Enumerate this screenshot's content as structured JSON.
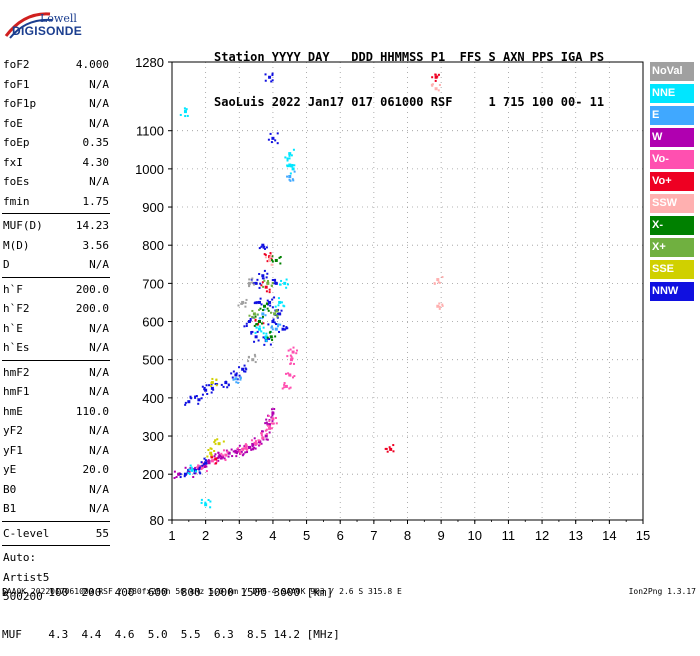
{
  "logo": {
    "line1": "Lowell",
    "line2": "DIGISONDE"
  },
  "header": {
    "line1": "Station YYYY DAY   DDD HHMMSS P1  FFS S AXN PPS IGA PS",
    "line2": "SaoLuis 2022 Jan17 017 061000 RSF     1 715 100 00- 11"
  },
  "params": [
    {
      "label": "foF2",
      "value": "4.000"
    },
    {
      "label": "foF1",
      "value": "N/A"
    },
    {
      "label": "foF1p",
      "value": "N/A"
    },
    {
      "label": "foE",
      "value": "N/A"
    },
    {
      "label": "foEp",
      "value": "0.35"
    },
    {
      "label": "fxI",
      "value": "4.30"
    },
    {
      "label": "foEs",
      "value": "N/A"
    },
    {
      "label": "fmin",
      "value": "1.75"
    },
    {
      "label": "MUF(D)",
      "value": "14.23"
    },
    {
      "label": "M(D)",
      "value": "3.56"
    },
    {
      "label": "D",
      "value": "N/A"
    },
    {
      "label": "h`F",
      "value": "200.0"
    },
    {
      "label": "h`F2",
      "value": "200.0"
    },
    {
      "label": "h`E",
      "value": "N/A"
    },
    {
      "label": "h`Es",
      "value": "N/A"
    },
    {
      "label": "hmF2",
      "value": "N/A"
    },
    {
      "label": "hmF1",
      "value": "N/A"
    },
    {
      "label": "hmE",
      "value": "110.0"
    },
    {
      "label": "yF2",
      "value": "N/A"
    },
    {
      "label": "yF1",
      "value": "N/A"
    },
    {
      "label": "yE",
      "value": "20.0"
    },
    {
      "label": "B0",
      "value": "N/A"
    },
    {
      "label": "B1",
      "value": "N/A"
    },
    {
      "label": "C-level",
      "value": "55"
    },
    {
      "label": "Auto:",
      "value": ""
    },
    {
      "label": "Artist5",
      "value": ""
    },
    {
      "label": "500200",
      "value": ""
    }
  ],
  "legend": [
    {
      "label": "NoVal",
      "color": "#a0a0a0"
    },
    {
      "label": "NNE",
      "color": "#00e6ff"
    },
    {
      "label": "E",
      "color": "#40a8ff"
    },
    {
      "label": "W",
      "color": "#b000b0"
    },
    {
      "label": "Vo-",
      "color": "#ff50b0"
    },
    {
      "label": "Vo+",
      "color": "#ee0022"
    },
    {
      "label": "SSW",
      "color": "#ffb0b0"
    },
    {
      "label": "X-",
      "color": "#008000"
    },
    {
      "label": "X+",
      "color": "#70b040"
    },
    {
      "label": "SSE",
      "color": "#d0d000"
    },
    {
      "label": "NNW",
      "color": "#1010e0"
    }
  ],
  "footer": {
    "d_row": "D      100  200  400  600  800 1000 1500 3000 [km]",
    "muf_row": "MUF    4.3  4.4  4.6  5.0  5.5  6.3  8.5 14.2 [MHz]",
    "info": "SAA0K_2022017061000.RSF / 280fx256h 50 kHz 5.0 km / DPS-4 SAA0K 903 / 2.6 S 315.8 E",
    "version": "Ion2Png 1.3.17"
  },
  "chart_data": {
    "type": "scatter",
    "title": "",
    "xlabel": "",
    "ylabel": "",
    "xlim": [
      1,
      15
    ],
    "ylim": [
      80,
      1280
    ],
    "xticks": [
      1,
      2,
      3,
      4,
      5,
      6,
      7,
      8,
      9,
      10,
      11,
      12,
      13,
      14,
      15
    ],
    "yticks": [
      80,
      200,
      300,
      400,
      500,
      600,
      700,
      800,
      900,
      1000,
      1100,
      1280
    ],
    "grid": true,
    "series": [
      {
        "name": "W",
        "color": "#b000b0",
        "points": [
          [
            1.2,
            200
          ],
          [
            1.5,
            205
          ],
          [
            1.8,
            215
          ],
          [
            2.1,
            230
          ],
          [
            2.4,
            245
          ],
          [
            2.7,
            255
          ],
          [
            3.0,
            262
          ],
          [
            3.3,
            270
          ],
          [
            3.6,
            285
          ],
          [
            3.8,
            300
          ],
          [
            3.9,
            330
          ],
          [
            4.0,
            360
          ],
          [
            2.5,
            245
          ],
          [
            2.9,
            258
          ],
          [
            3.4,
            278
          ]
        ]
      },
      {
        "name": "Vo-",
        "color": "#ff50b0",
        "points": [
          [
            2.2,
            235
          ],
          [
            2.6,
            250
          ],
          [
            3.1,
            265
          ],
          [
            3.5,
            280
          ],
          [
            3.7,
            295
          ],
          [
            3.9,
            320
          ],
          [
            4.0,
            345
          ],
          [
            4.4,
            430
          ],
          [
            4.5,
            460
          ],
          [
            4.55,
            500
          ],
          [
            4.6,
            520
          ],
          [
            3.2,
            268
          ],
          [
            1.9,
            218
          ]
        ]
      },
      {
        "name": "Vo+",
        "color": "#ee0022",
        "points": [
          [
            3.8,
            690
          ],
          [
            3.9,
            770
          ],
          [
            2.3,
            240
          ],
          [
            3.6,
            600
          ],
          [
            8.85,
            1240
          ],
          [
            7.5,
            265
          ]
        ]
      },
      {
        "name": "NNW",
        "color": "#1010e0",
        "points": [
          [
            1.4,
            200
          ],
          [
            1.7,
            210
          ],
          [
            2.0,
            230
          ],
          [
            3.3,
            600
          ],
          [
            3.5,
            560
          ],
          [
            3.6,
            650
          ],
          [
            3.7,
            720
          ],
          [
            3.8,
            550
          ],
          [
            3.9,
            650
          ],
          [
            4.0,
            600
          ],
          [
            4.1,
            700
          ],
          [
            4.2,
            620
          ],
          [
            3.5,
            700
          ],
          [
            3.7,
            800
          ],
          [
            4.0,
            1080
          ],
          [
            3.9,
            1240
          ],
          [
            1.5,
            390
          ],
          [
            1.8,
            395
          ],
          [
            2.0,
            420
          ],
          [
            2.2,
            425
          ],
          [
            2.6,
            440
          ],
          [
            2.9,
            460
          ],
          [
            3.1,
            475
          ],
          [
            4.3,
            580
          ]
        ]
      },
      {
        "name": "NNE",
        "color": "#00e6ff",
        "points": [
          [
            1.4,
            1150
          ],
          [
            2.0,
            120
          ],
          [
            4.5,
            1010
          ],
          [
            4.6,
            1000
          ],
          [
            4.5,
            1040
          ],
          [
            3.6,
            580
          ],
          [
            3.8,
            560
          ],
          [
            4.35,
            700
          ],
          [
            4.2,
            650
          ],
          [
            1.6,
            210
          ]
        ]
      },
      {
        "name": "E",
        "color": "#40a8ff",
        "points": [
          [
            4.5,
            980
          ],
          [
            3.7,
            620
          ],
          [
            4.1,
            580
          ],
          [
            2.9,
            450
          ]
        ]
      },
      {
        "name": "X-",
        "color": "#008000",
        "points": [
          [
            3.6,
            600
          ],
          [
            3.75,
            640
          ],
          [
            3.95,
            560
          ],
          [
            4.1,
            760
          ]
        ]
      },
      {
        "name": "X+",
        "color": "#70b040",
        "points": [
          [
            3.45,
            620
          ],
          [
            3.85,
            700
          ],
          [
            4.05,
            620
          ]
        ]
      },
      {
        "name": "SSE",
        "color": "#d0d000",
        "points": [
          [
            2.2,
            440
          ],
          [
            2.15,
            255
          ],
          [
            2.4,
            280
          ]
        ]
      },
      {
        "name": "SSW",
        "color": "#ffb0b0",
        "points": [
          [
            8.9,
            710
          ],
          [
            8.9,
            640
          ],
          [
            8.85,
            1210
          ],
          [
            3.9,
            760
          ]
        ]
      },
      {
        "name": "NoVal",
        "color": "#a0a0a0",
        "points": [
          [
            3.3,
            700
          ],
          [
            3.1,
            650
          ],
          [
            3.4,
            500
          ]
        ]
      }
    ]
  }
}
